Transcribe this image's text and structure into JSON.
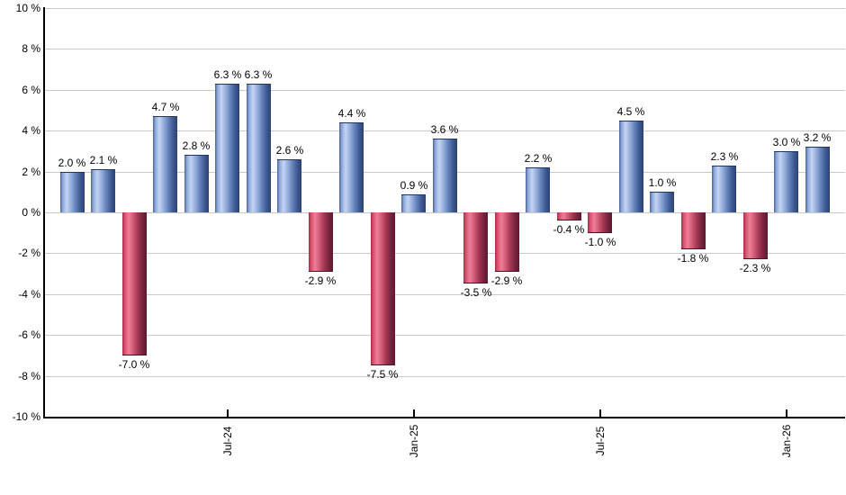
{
  "chart_data": {
    "type": "bar",
    "title": "",
    "xlabel": "",
    "ylabel": "",
    "unit": "%",
    "ylim": [
      -10,
      10
    ],
    "grid": true,
    "legend": "none",
    "values": [
      2.0,
      2.1,
      -7.0,
      4.7,
      2.8,
      6.3,
      6.3,
      2.6,
      -2.9,
      4.4,
      -7.5,
      0.9,
      3.6,
      -3.5,
      -2.9,
      2.2,
      -0.4,
      -1.0,
      4.5,
      1.0,
      -1.8,
      2.3,
      -2.3,
      3.0,
      3.2
    ],
    "bar_labels": [
      "2.0 %",
      "2.1 %",
      "-7.0 %",
      "4.7 %",
      "2.8 %",
      "6.3 %",
      "6.3 %",
      "2.6 %",
      "-2.9 %",
      "4.4 %",
      "-7.5 %",
      "0.9 %",
      "3.6 %",
      "-3.5 %",
      "-2.9 %",
      "2.2 %",
      "-0.4 %",
      "-1.0 %",
      "4.5 %",
      "1.0 %",
      "-1.8 %",
      "2.3 %",
      "-2.3 %",
      "3.0 %",
      "3.2 %"
    ],
    "y_tick_labels": [
      "10 %",
      "8 %",
      "6 %",
      "4 %",
      "2 %",
      "0 %",
      "-2 %",
      "-4 %",
      "-6 %",
      "-8 %",
      "-10 %"
    ],
    "y_tick_values": [
      10,
      8,
      6,
      4,
      2,
      0,
      -2,
      -4,
      -6,
      -8,
      -10
    ],
    "x_tick_labels": [
      "Jul-24",
      "Jan-25",
      "Jul-25",
      "Jan-26"
    ],
    "x_tick_bar_indices": [
      5,
      11,
      17,
      23
    ],
    "colors": {
      "positive_gradient": [
        "#49639B",
        "#8FA9DB",
        "#C4D4F2",
        "#93ACDB",
        "#6784BB",
        "#3F5B95",
        "#2B4170"
      ],
      "negative_gradient": [
        "#AD2847",
        "#D9506F",
        "#EE7E97",
        "#CE5A75",
        "#A73955",
        "#7B2440",
        "#591A2F"
      ],
      "positive_border": "#24365E",
      "negative_border": "#4A1426",
      "gridline": "#C9C9C9",
      "axis": "#000000",
      "background": "#FFFFFF",
      "label_text": "#000000"
    }
  }
}
